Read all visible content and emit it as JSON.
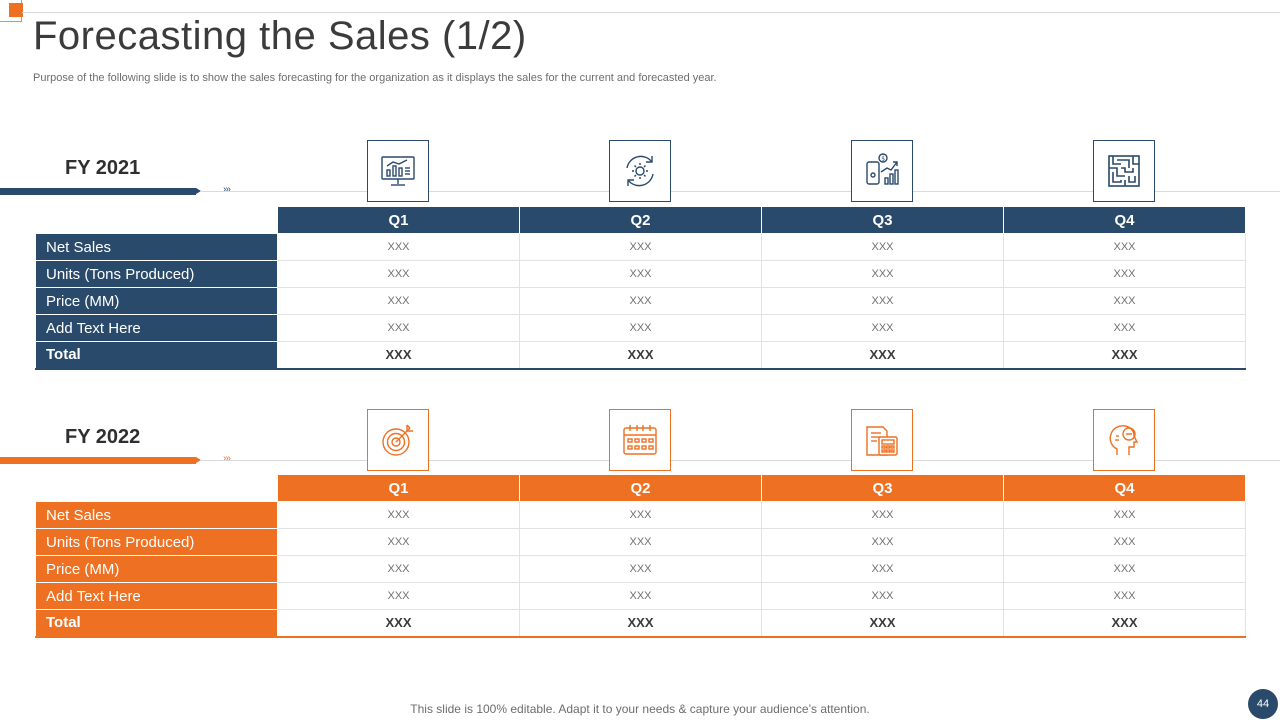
{
  "colors": {
    "navy": "#2a4a6b",
    "orange": "#ee7023"
  },
  "slide": {
    "title": "Forecasting the Sales (1/2)",
    "subtitle": "Purpose of the following slide is to show the sales forecasting for the organization as it displays the sales for the current and forecasted year.",
    "footer_note": "This slide is 100% editable. Adapt it to your needs & capture your audience’s attention.",
    "page_number": "44"
  },
  "sections": [
    {
      "year_label": "FY 2021",
      "chevrons": "›››",
      "icons": [
        "computer-chart-icon",
        "gear-refresh-icon",
        "mobile-growth-icon",
        "maze-icon"
      ],
      "columns": [
        "Q1",
        "Q2",
        "Q3",
        "Q4"
      ],
      "rows": [
        {
          "label": "Net Sales",
          "values": [
            "XXX",
            "XXX",
            "XXX",
            "XXX"
          ]
        },
        {
          "label": "Units (Tons Produced)",
          "values": [
            "XXX",
            "XXX",
            "XXX",
            "XXX"
          ]
        },
        {
          "label": "Price (MM)",
          "values": [
            "XXX",
            "XXX",
            "XXX",
            "XXX"
          ]
        },
        {
          "label": "Add Text Here",
          "values": [
            "XXX",
            "XXX",
            "XXX",
            "XXX"
          ]
        },
        {
          "label": "Total",
          "values": [
            "XXX",
            "XXX",
            "XXX",
            "XXX"
          ]
        }
      ]
    },
    {
      "year_label": "FY 2022",
      "chevrons": "›››",
      "icons": [
        "target-icon",
        "calendar-icon",
        "calculator-document-icon",
        "head-idea-icon"
      ],
      "columns": [
        "Q1",
        "Q2",
        "Q3",
        "Q4"
      ],
      "rows": [
        {
          "label": "Net Sales",
          "values": [
            "XXX",
            "XXX",
            "XXX",
            "XXX"
          ]
        },
        {
          "label": "Units (Tons Produced)",
          "values": [
            "XXX",
            "XXX",
            "XXX",
            "XXX"
          ]
        },
        {
          "label": "Price (MM)",
          "values": [
            "XXX",
            "XXX",
            "XXX",
            "XXX"
          ]
        },
        {
          "label": "Add Text Here",
          "values": [
            "XXX",
            "XXX",
            "XXX",
            "XXX"
          ]
        },
        {
          "label": "Total",
          "values": [
            "XXX",
            "XXX",
            "XXX",
            "XXX"
          ]
        }
      ]
    }
  ]
}
